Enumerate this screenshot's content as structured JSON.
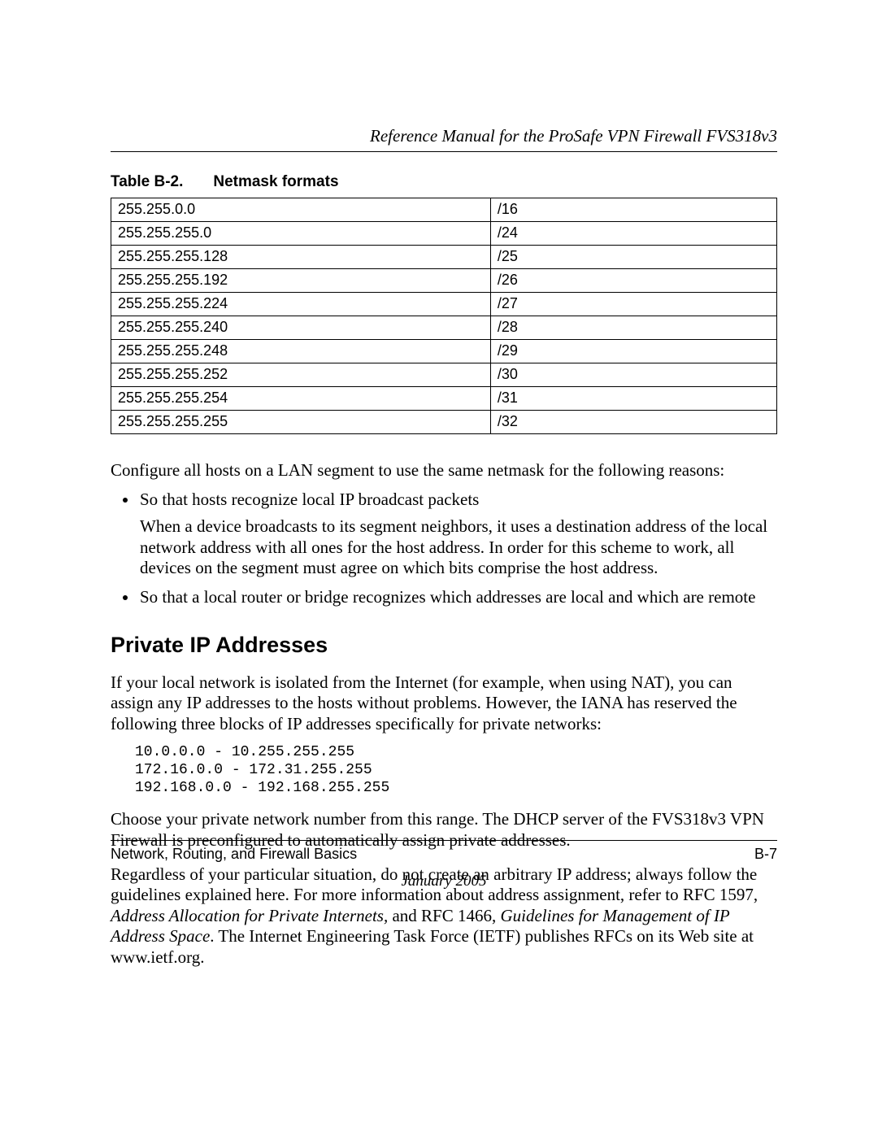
{
  "header": {
    "running_title": "Reference Manual for the ProSafe VPN Firewall FVS318v3"
  },
  "table": {
    "caption_label": "Table B-2.",
    "caption_title": "Netmask formats",
    "rows": [
      {
        "mask": "255.255.0.0",
        "cidr": "/16"
      },
      {
        "mask": "255.255.255.0",
        "cidr": "/24"
      },
      {
        "mask": "255.255.255.128",
        "cidr": "/25"
      },
      {
        "mask": "255.255.255.192",
        "cidr": "/26"
      },
      {
        "mask": "255.255.255.224",
        "cidr": "/27"
      },
      {
        "mask": "255.255.255.240",
        "cidr": "/28"
      },
      {
        "mask": "255.255.255.248",
        "cidr": "/29"
      },
      {
        "mask": "255.255.255.252",
        "cidr": "/30"
      },
      {
        "mask": "255.255.255.254",
        "cidr": "/31"
      },
      {
        "mask": "255.255.255.255",
        "cidr": "/32"
      }
    ]
  },
  "para_intro": "Configure all hosts on a LAN segment to use the same netmask for the following reasons:",
  "bullets": [
    {
      "lead": "So that hosts recognize local IP broadcast packets",
      "body": "When a device broadcasts to its segment neighbors, it uses a destination address of the local network address with all ones for the host address. In order for this scheme to work, all devices on the segment must agree on which bits comprise the host address."
    },
    {
      "lead": "So that a local router or bridge recognizes which addresses are local and which are remote",
      "body": ""
    }
  ],
  "section_heading": "Private IP Addresses",
  "para_private_intro": "If your local network is isolated from the Internet (for example, when using NAT), you can assign any IP addresses to the hosts without problems. However, the IANA has reserved the following three blocks of IP addresses specifically for private networks:",
  "code_lines": [
    "10.0.0.0 - 10.255.255.255",
    "172.16.0.0 - 172.31.255.255",
    "192.168.0.0 - 192.168.255.255"
  ],
  "para_choose": "Choose your private network number from this range. The DHCP server of the FVS318v3 VPN Firewall is preconfigured to automatically assign private addresses.",
  "para_regardless": {
    "t1": "Regardless of your particular situation, do not create an arbitrary IP address; always follow the guidelines explained here. For more information about address assignment, refer to RFC 1597, ",
    "i1": "Address Allocation for Private Internets,",
    "t2": " and RFC 1466, ",
    "i2": "Guidelines for Management of IP Address Space",
    "t3": ". The Internet Engineering Task Force (IETF) publishes RFCs on its Web site at www.ietf.org."
  },
  "footer": {
    "left": "Network, Routing, and Firewall Basics",
    "right": "B-7",
    "date": "January 2005"
  }
}
